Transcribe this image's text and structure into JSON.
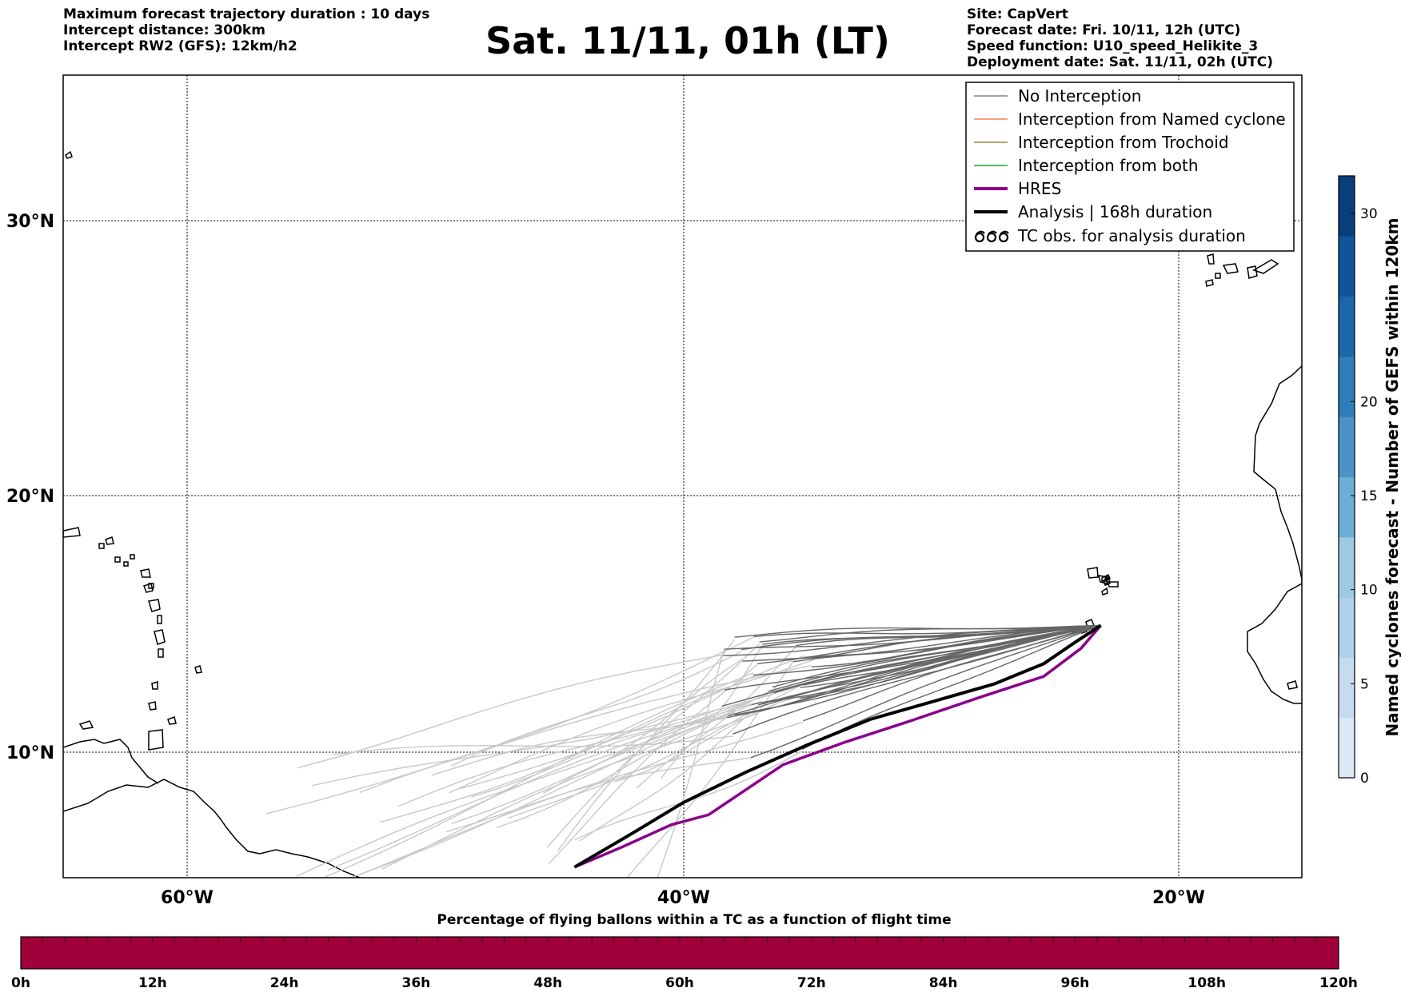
{
  "header_left": {
    "line1": "Maximum forecast trajectory duration : 10 days",
    "line2": "Intercept distance: 300km",
    "line3": "Intercept RW2 (GFS):  12km/h2"
  },
  "title": "Sat. 11/11, 01h (LT)",
  "header_right": {
    "line1": "Site: CapVert",
    "line2": "Forecast date: Fri. 10/11, 12h (UTC)",
    "line3": "Speed function: U10_speed_Helikite_3",
    "line4": "Deployment date: Sat. 11/11, 02h (UTC)"
  },
  "map": {
    "lat_labels": [
      "30°N",
      "20°N",
      "10°N"
    ],
    "lon_labels": [
      "60°W",
      "40°W",
      "20°W"
    ],
    "lat_values": [
      30,
      20,
      10
    ],
    "lon_values": [
      -60,
      -40,
      -20
    ],
    "extent": {
      "lon_min": -65,
      "lon_max": -15,
      "lat_min": 5.4,
      "lat_max": 35.3
    },
    "colors": {
      "no_interception": "#808080",
      "interception_named": "#ff7f50",
      "interception_trochoid": "#9a8a3a",
      "interception_both": "#2e9e2e",
      "hres": "#8b008b",
      "hres_late": "#ee66ee",
      "analysis": "#000000",
      "light_traj": "#c8c8c8",
      "dark_traj": "#666666"
    },
    "deployment_site": {
      "lon": -23.2,
      "lat": 15.0
    },
    "analysis_track": [
      [
        -23.2,
        15.0
      ],
      [
        -24.3,
        14.3
      ],
      [
        -25.5,
        13.5
      ],
      [
        -27.5,
        12.7
      ],
      [
        -30,
        12.0
      ],
      [
        -32.5,
        11.3
      ],
      [
        -35,
        10.3
      ],
      [
        -37.5,
        9.2
      ],
      [
        -40,
        8.0
      ],
      [
        -42,
        6.8
      ],
      [
        -44.4,
        5.4
      ]
    ],
    "hres_track": [
      [
        -23.2,
        15.0
      ],
      [
        -24.0,
        14.1
      ],
      [
        -25.5,
        13.0
      ],
      [
        -28,
        12.2
      ],
      [
        -31,
        11.2
      ],
      [
        -33.5,
        10.4
      ],
      [
        -36,
        9.5
      ],
      [
        -37.5,
        8.5
      ],
      [
        -39,
        7.5
      ],
      [
        -40.5,
        7.1
      ],
      [
        -42.5,
        6.2
      ],
      [
        -44.4,
        5.4
      ]
    ]
  },
  "legend": {
    "items": [
      {
        "label": "No Interception",
        "color": "#808080",
        "style": "thin"
      },
      {
        "label": "Interception from Named cyclone",
        "color": "#ff7f50",
        "style": "thin"
      },
      {
        "label": "Interception from Trochoid",
        "color": "#9a8a3a",
        "style": "thin"
      },
      {
        "label": "Interception from both",
        "color": "#2e9e2e",
        "style": "thin"
      },
      {
        "label": "HRES",
        "color": "#8b008b",
        "style": "thick"
      },
      {
        "label": "Analysis | 168h duration",
        "color": "#000000",
        "style": "thick"
      },
      {
        "label": "TC obs. for analysis duration",
        "color": "#000000",
        "style": "tc"
      }
    ]
  },
  "colorbar": {
    "label": "Named cyclones forecast - Number of GEFS within 120km",
    "ticks": [
      "0",
      "5",
      "10",
      "15",
      "20",
      "30"
    ],
    "tick_values": [
      0,
      5,
      10,
      15,
      20,
      30
    ],
    "vmax": 32,
    "colors": [
      "#dde8f6",
      "#c6dbef",
      "#b0cfe8",
      "#9ecae1",
      "#6baed6",
      "#4b93c7",
      "#2f7ebc",
      "#1c66aa",
      "#0f559c",
      "#083f7d"
    ]
  },
  "bottom_bar": {
    "title": "Percentage of flying ballons within a TC as a function of flight time",
    "color": "#a0003a",
    "ticks": [
      "0h",
      "12h",
      "24h",
      "36h",
      "48h",
      "60h",
      "72h",
      "84h",
      "96h",
      "108h",
      "120h"
    ]
  }
}
